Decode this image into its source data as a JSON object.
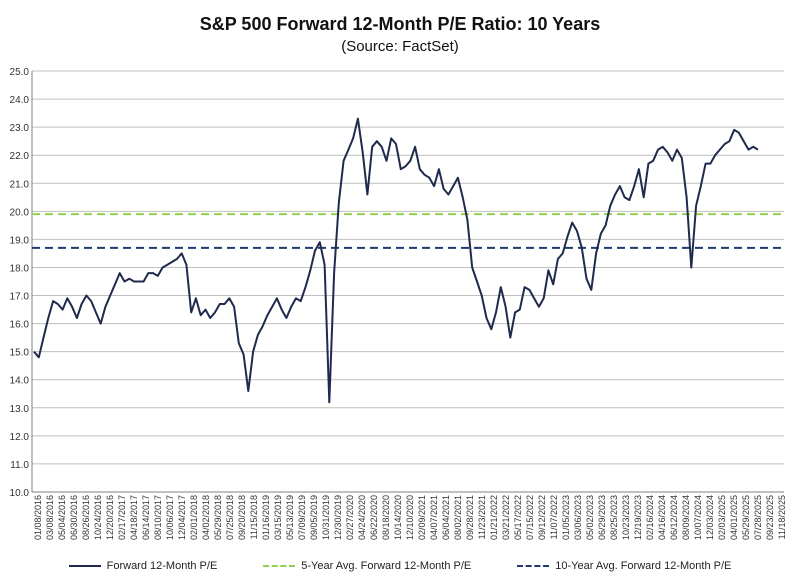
{
  "chart_data": {
    "type": "line",
    "title": "S&P 500 Forward 12-Month P/E Ratio: 10 Years",
    "subtitle": "(Source: FactSet)",
    "ylim": [
      10.0,
      25.0
    ],
    "yticks": [
      "25.0",
      "24.0",
      "23.0",
      "22.0",
      "21.0",
      "20.0",
      "19.0",
      "18.0",
      "17.0",
      "16.0",
      "15.0",
      "14.0",
      "13.0",
      "12.0",
      "11.0",
      "10.0"
    ],
    "xticks": [
      "01/08/2016",
      "03/08/2016",
      "05/04/2016",
      "06/30/2016",
      "08/26/2016",
      "10/24/2016",
      "12/20/2016",
      "02/17/2017",
      "04/18/2017",
      "06/14/2017",
      "08/10/2017",
      "10/06/2017",
      "12/04/2017",
      "02/01/2018",
      "04/02/2018",
      "05/29/2018",
      "07/25/2018",
      "09/20/2018",
      "11/15/2018",
      "01/16/2019",
      "03/15/2019",
      "05/13/2019",
      "07/09/2019",
      "09/05/2019",
      "10/31/2019",
      "12/30/2019",
      "02/27/2020",
      "04/24/2020",
      "06/22/2020",
      "08/18/2020",
      "10/14/2020",
      "12/10/2020",
      "02/09/2021",
      "04/07/2021",
      "06/04/2021",
      "08/02/2021",
      "09/28/2021",
      "11/23/2021",
      "01/21/2022",
      "03/21/2022",
      "05/17/2022",
      "07/15/2022",
      "09/12/2022",
      "11/07/2022",
      "01/05/2023",
      "03/06/2023",
      "05/02/2023",
      "06/29/2023",
      "08/25/2023",
      "10/23/2023",
      "12/19/2023",
      "02/16/2024",
      "04/16/2024",
      "06/12/2024",
      "08/09/2024",
      "10/07/2024",
      "12/03/2024",
      "02/03/2025",
      "04/01/2025",
      "05/29/2025",
      "07/28/2025",
      "09/23/2025",
      "11/18/2025"
    ],
    "grid": true,
    "legend_position": "bottom",
    "series": [
      {
        "name": "Forward 12-Month P/E",
        "color": "#1f2a4d",
        "style": "solid",
        "values": [
          15.0,
          14.8,
          15.5,
          16.2,
          16.8,
          16.7,
          16.5,
          16.9,
          16.6,
          16.2,
          16.7,
          17.0,
          16.8,
          16.4,
          16.0,
          16.6,
          17.0,
          17.4,
          17.8,
          17.5,
          17.6,
          17.5,
          17.5,
          17.5,
          17.8,
          17.8,
          17.7,
          18.0,
          18.1,
          18.2,
          18.3,
          18.5,
          18.1,
          16.4,
          16.9,
          16.3,
          16.5,
          16.2,
          16.4,
          16.7,
          16.7,
          16.9,
          16.6,
          15.3,
          14.9,
          13.6,
          15.0,
          15.6,
          15.9,
          16.3,
          16.6,
          16.9,
          16.5,
          16.2,
          16.6,
          16.9,
          16.8,
          17.3,
          17.9,
          18.6,
          18.9,
          18.1,
          13.2,
          17.8,
          20.3,
          21.8,
          22.2,
          22.6,
          23.3,
          22.1,
          20.6,
          22.3,
          22.5,
          22.3,
          21.8,
          22.6,
          22.4,
          21.5,
          21.6,
          21.8,
          22.3,
          21.5,
          21.3,
          21.2,
          20.9,
          21.5,
          20.8,
          20.6,
          20.9,
          21.2,
          20.5,
          19.7,
          18.0,
          17.5,
          17.0,
          16.2,
          15.8,
          16.4,
          17.3,
          16.6,
          15.5,
          16.4,
          16.5,
          17.3,
          17.2,
          16.9,
          16.6,
          16.9,
          17.9,
          17.4,
          18.3,
          18.5,
          19.1,
          19.6,
          19.3,
          18.7,
          17.6,
          17.2,
          18.5,
          19.2,
          19.5,
          20.2,
          20.6,
          20.9,
          20.5,
          20.4,
          20.9,
          21.5,
          20.5,
          21.7,
          21.8,
          22.2,
          22.3,
          22.1,
          21.8,
          22.2,
          21.9,
          20.5,
          18.0,
          20.2,
          20.9,
          21.7,
          21.7,
          22.0,
          22.2,
          22.4,
          22.5,
          22.9,
          22.8,
          22.5,
          22.2,
          22.3,
          22.2
        ]
      },
      {
        "name": "5-Year Avg. Forward 12-Month P/E",
        "color": "#92d050",
        "style": "dashed",
        "values": [
          19.9,
          19.9
        ]
      },
      {
        "name": "10-Year Avg. Forward 12-Month P/E",
        "color": "#1f3a6e",
        "style": "dashed",
        "values": [
          18.7,
          18.7
        ]
      }
    ]
  }
}
